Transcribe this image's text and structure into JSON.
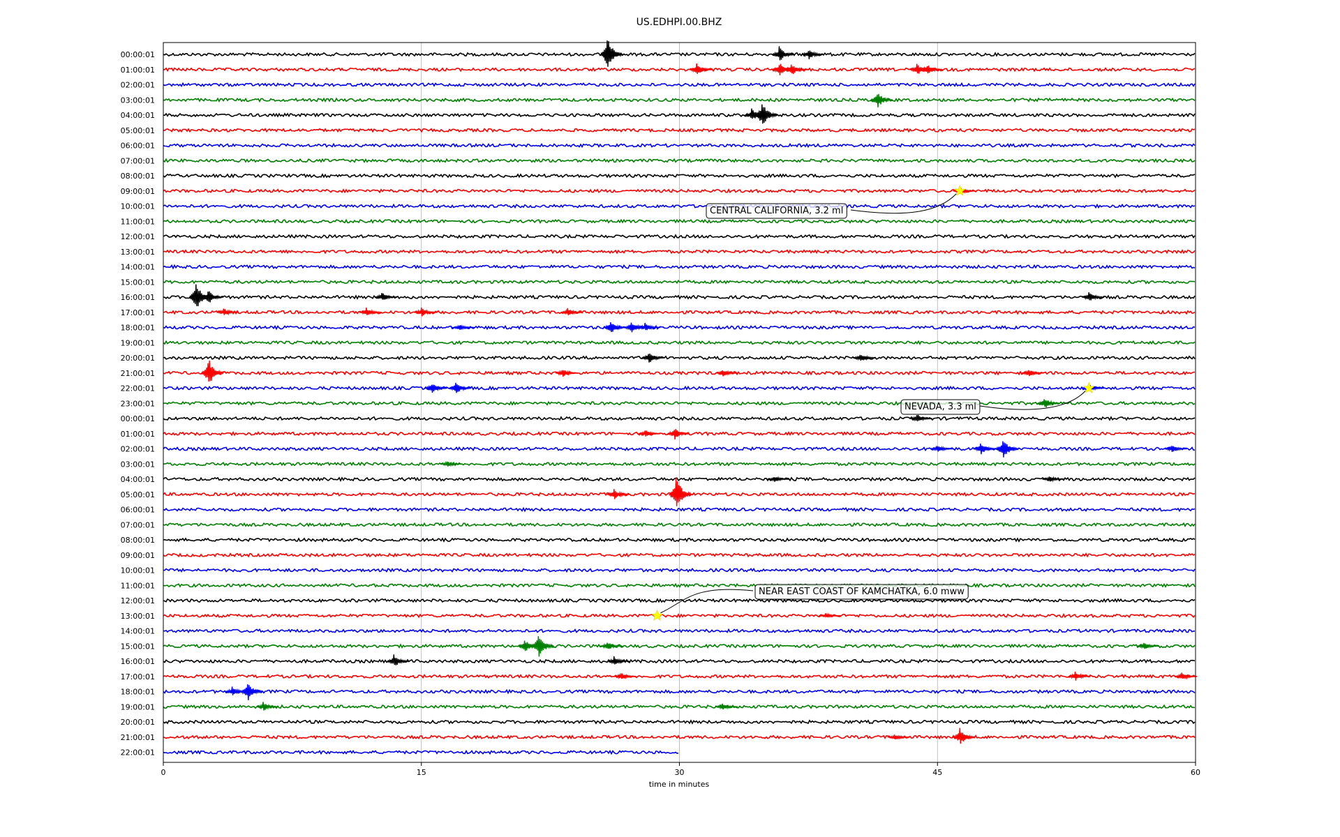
{
  "chart_data": {
    "type": "line",
    "title": "US.EDHPI.00.BHZ",
    "xlabel": "time in minutes",
    "ylabel": "",
    "xlim": [
      0,
      60
    ],
    "xticks": [
      "0",
      "15",
      "30",
      "45",
      "60"
    ],
    "xtick_values": [
      0,
      15,
      30,
      45,
      60
    ],
    "grid": "vertical lines at 15, 30, 45",
    "trace_colors": [
      "#000000",
      "#ff0000",
      "#0000ff",
      "#008000"
    ],
    "row_labels": [
      "00:00:01",
      "01:00:01",
      "02:00:01",
      "03:00:01",
      "04:00:01",
      "05:00:01",
      "06:00:01",
      "07:00:01",
      "08:00:01",
      "09:00:01",
      "10:00:01",
      "11:00:01",
      "12:00:01",
      "13:00:01",
      "14:00:01",
      "15:00:01",
      "16:00:01",
      "17:00:01",
      "18:00:01",
      "19:00:01",
      "20:00:01",
      "21:00:01",
      "22:00:01",
      "23:00:01",
      "00:00:01",
      "01:00:01",
      "02:00:01",
      "03:00:01",
      "04:00:01",
      "05:00:01",
      "06:00:01",
      "07:00:01",
      "08:00:01",
      "09:00:01",
      "10:00:01",
      "11:00:01",
      "12:00:01",
      "13:00:01",
      "14:00:01",
      "15:00:01",
      "16:00:01",
      "17:00:01",
      "18:00:01",
      "19:00:01",
      "20:00:01",
      "21:00:01",
      "22:00:01"
    ],
    "last_row_end_minute": 30,
    "events": [
      {
        "label": "CENTRAL CALIFORNIA, 3.2 ml",
        "row": 9,
        "minute": 46.3
      },
      {
        "label": "NEVADA, 3.3 ml",
        "row": 22,
        "minute": 53.8
      },
      {
        "label": "NEAR EAST COAST OF KAMCHATKA, 6.0 mww",
        "row": 37,
        "minute": 28.7
      }
    ],
    "bursts": [
      {
        "row": 0,
        "minute": 25.8,
        "amp": 2.4
      },
      {
        "row": 0,
        "minute": 35.8,
        "amp": 1.0
      },
      {
        "row": 0,
        "minute": 37.5,
        "amp": 0.7
      },
      {
        "row": 1,
        "minute": 31.0,
        "amp": 0.8
      },
      {
        "row": 1,
        "minute": 35.8,
        "amp": 0.9
      },
      {
        "row": 1,
        "minute": 36.5,
        "amp": 0.8
      },
      {
        "row": 1,
        "minute": 43.8,
        "amp": 0.8
      },
      {
        "row": 1,
        "minute": 44.4,
        "amp": 0.7
      },
      {
        "row": 3,
        "minute": 41.5,
        "amp": 1.1
      },
      {
        "row": 4,
        "minute": 34.8,
        "amp": 2.0
      },
      {
        "row": 4,
        "minute": 34.2,
        "amp": 0.8
      },
      {
        "row": 9,
        "minute": 46.3,
        "amp": 0.5
      },
      {
        "row": 16,
        "minute": 1.9,
        "amp": 2.0
      },
      {
        "row": 16,
        "minute": 2.6,
        "amp": 1.0
      },
      {
        "row": 16,
        "minute": 12.7,
        "amp": 0.6
      },
      {
        "row": 16,
        "minute": 53.8,
        "amp": 0.6
      },
      {
        "row": 17,
        "minute": 3.5,
        "amp": 0.5
      },
      {
        "row": 17,
        "minute": 11.8,
        "amp": 0.6
      },
      {
        "row": 17,
        "minute": 15.0,
        "amp": 0.6
      },
      {
        "row": 17,
        "minute": 23.5,
        "amp": 0.5
      },
      {
        "row": 18,
        "minute": 26.0,
        "amp": 0.9
      },
      {
        "row": 18,
        "minute": 27.2,
        "amp": 0.8
      },
      {
        "row": 18,
        "minute": 28.0,
        "amp": 0.6
      },
      {
        "row": 18,
        "minute": 17.2,
        "amp": 0.4
      },
      {
        "row": 20,
        "minute": 28.2,
        "amp": 0.8
      },
      {
        "row": 20,
        "minute": 40.5,
        "amp": 0.6
      },
      {
        "row": 21,
        "minute": 2.6,
        "amp": 2.0
      },
      {
        "row": 21,
        "minute": 23.2,
        "amp": 0.6
      },
      {
        "row": 21,
        "minute": 32.5,
        "amp": 0.5
      },
      {
        "row": 21,
        "minute": 50.3,
        "amp": 0.5
      },
      {
        "row": 22,
        "minute": 15.6,
        "amp": 0.7
      },
      {
        "row": 22,
        "minute": 17.0,
        "amp": 0.8
      },
      {
        "row": 22,
        "minute": 53.8,
        "amp": 0.5
      },
      {
        "row": 23,
        "minute": 51.2,
        "amp": 0.8
      },
      {
        "row": 24,
        "minute": 43.8,
        "amp": 0.6
      },
      {
        "row": 25,
        "minute": 28.0,
        "amp": 0.5
      },
      {
        "row": 25,
        "minute": 29.7,
        "amp": 0.8
      },
      {
        "row": 26,
        "minute": 47.5,
        "amp": 0.9
      },
      {
        "row": 26,
        "minute": 48.8,
        "amp": 1.5
      },
      {
        "row": 26,
        "minute": 45.0,
        "amp": 0.5
      },
      {
        "row": 26,
        "minute": 58.6,
        "amp": 0.5
      },
      {
        "row": 27,
        "minute": 16.5,
        "amp": 0.4
      },
      {
        "row": 28,
        "minute": 35.5,
        "amp": 0.4
      },
      {
        "row": 28,
        "minute": 51.5,
        "amp": 0.4
      },
      {
        "row": 29,
        "minute": 29.8,
        "amp": 2.4
      },
      {
        "row": 29,
        "minute": 26.2,
        "amp": 0.7
      },
      {
        "row": 37,
        "minute": 38.5,
        "amp": 0.3
      },
      {
        "row": 39,
        "minute": 21.8,
        "amp": 1.8
      },
      {
        "row": 39,
        "minute": 21.0,
        "amp": 0.9
      },
      {
        "row": 39,
        "minute": 25.8,
        "amp": 0.6
      },
      {
        "row": 39,
        "minute": 57.0,
        "amp": 0.5
      },
      {
        "row": 40,
        "minute": 13.4,
        "amp": 0.9
      },
      {
        "row": 40,
        "minute": 26.2,
        "amp": 0.6
      },
      {
        "row": 41,
        "minute": 26.6,
        "amp": 0.5
      },
      {
        "row": 41,
        "minute": 53.0,
        "amp": 0.6
      },
      {
        "row": 41,
        "minute": 59.2,
        "amp": 0.5
      },
      {
        "row": 42,
        "minute": 4.9,
        "amp": 1.2
      },
      {
        "row": 42,
        "minute": 4.0,
        "amp": 0.6
      },
      {
        "row": 43,
        "minute": 5.8,
        "amp": 0.6
      },
      {
        "row": 43,
        "minute": 32.5,
        "amp": 0.5
      },
      {
        "row": 45,
        "minute": 46.3,
        "amp": 1.1
      },
      {
        "row": 45,
        "minute": 42.5,
        "amp": 0.4
      }
    ]
  }
}
